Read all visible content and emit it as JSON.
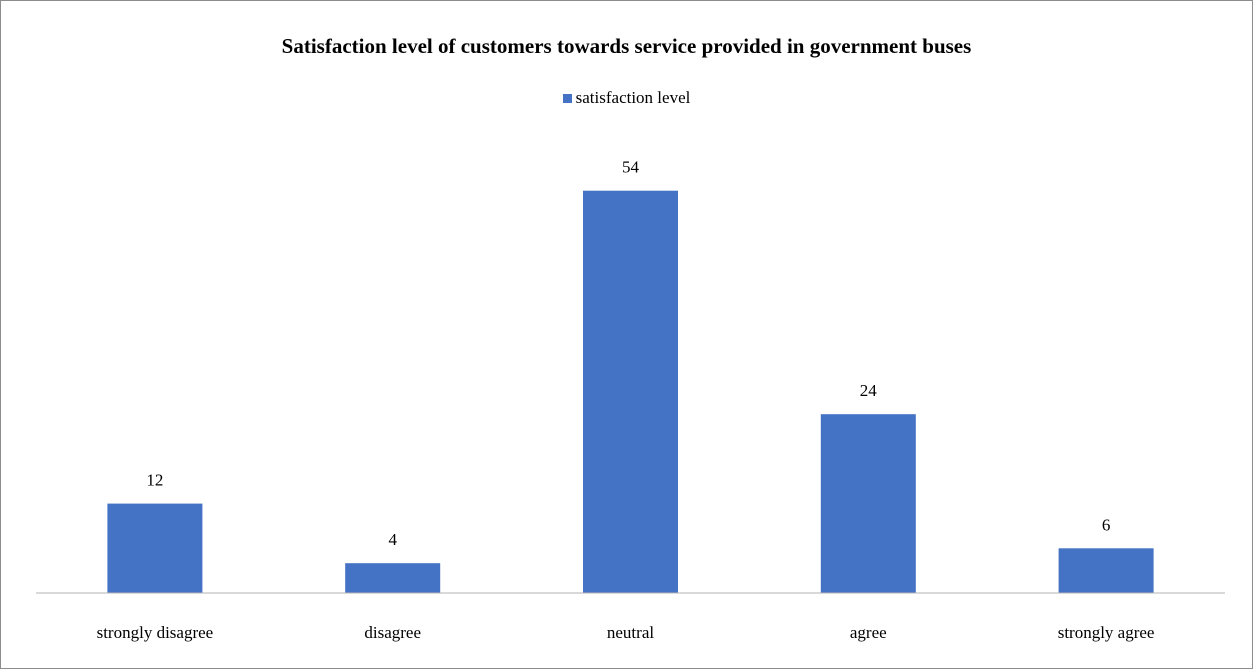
{
  "chart_data": {
    "type": "bar",
    "title": "Satisfaction level of customers towards service provided in government buses",
    "xlabel": "",
    "ylabel": "",
    "categories": [
      "strongly disagree",
      "disagree",
      "neutral",
      "agree",
      "strongly agree"
    ],
    "series": [
      {
        "name": "satisfaction level",
        "values": [
          12,
          4,
          54,
          24,
          6
        ],
        "color": "#4472C4"
      }
    ],
    "ylim": [
      0,
      60
    ],
    "grid": false,
    "data_labels": true,
    "legend_position": "top"
  }
}
